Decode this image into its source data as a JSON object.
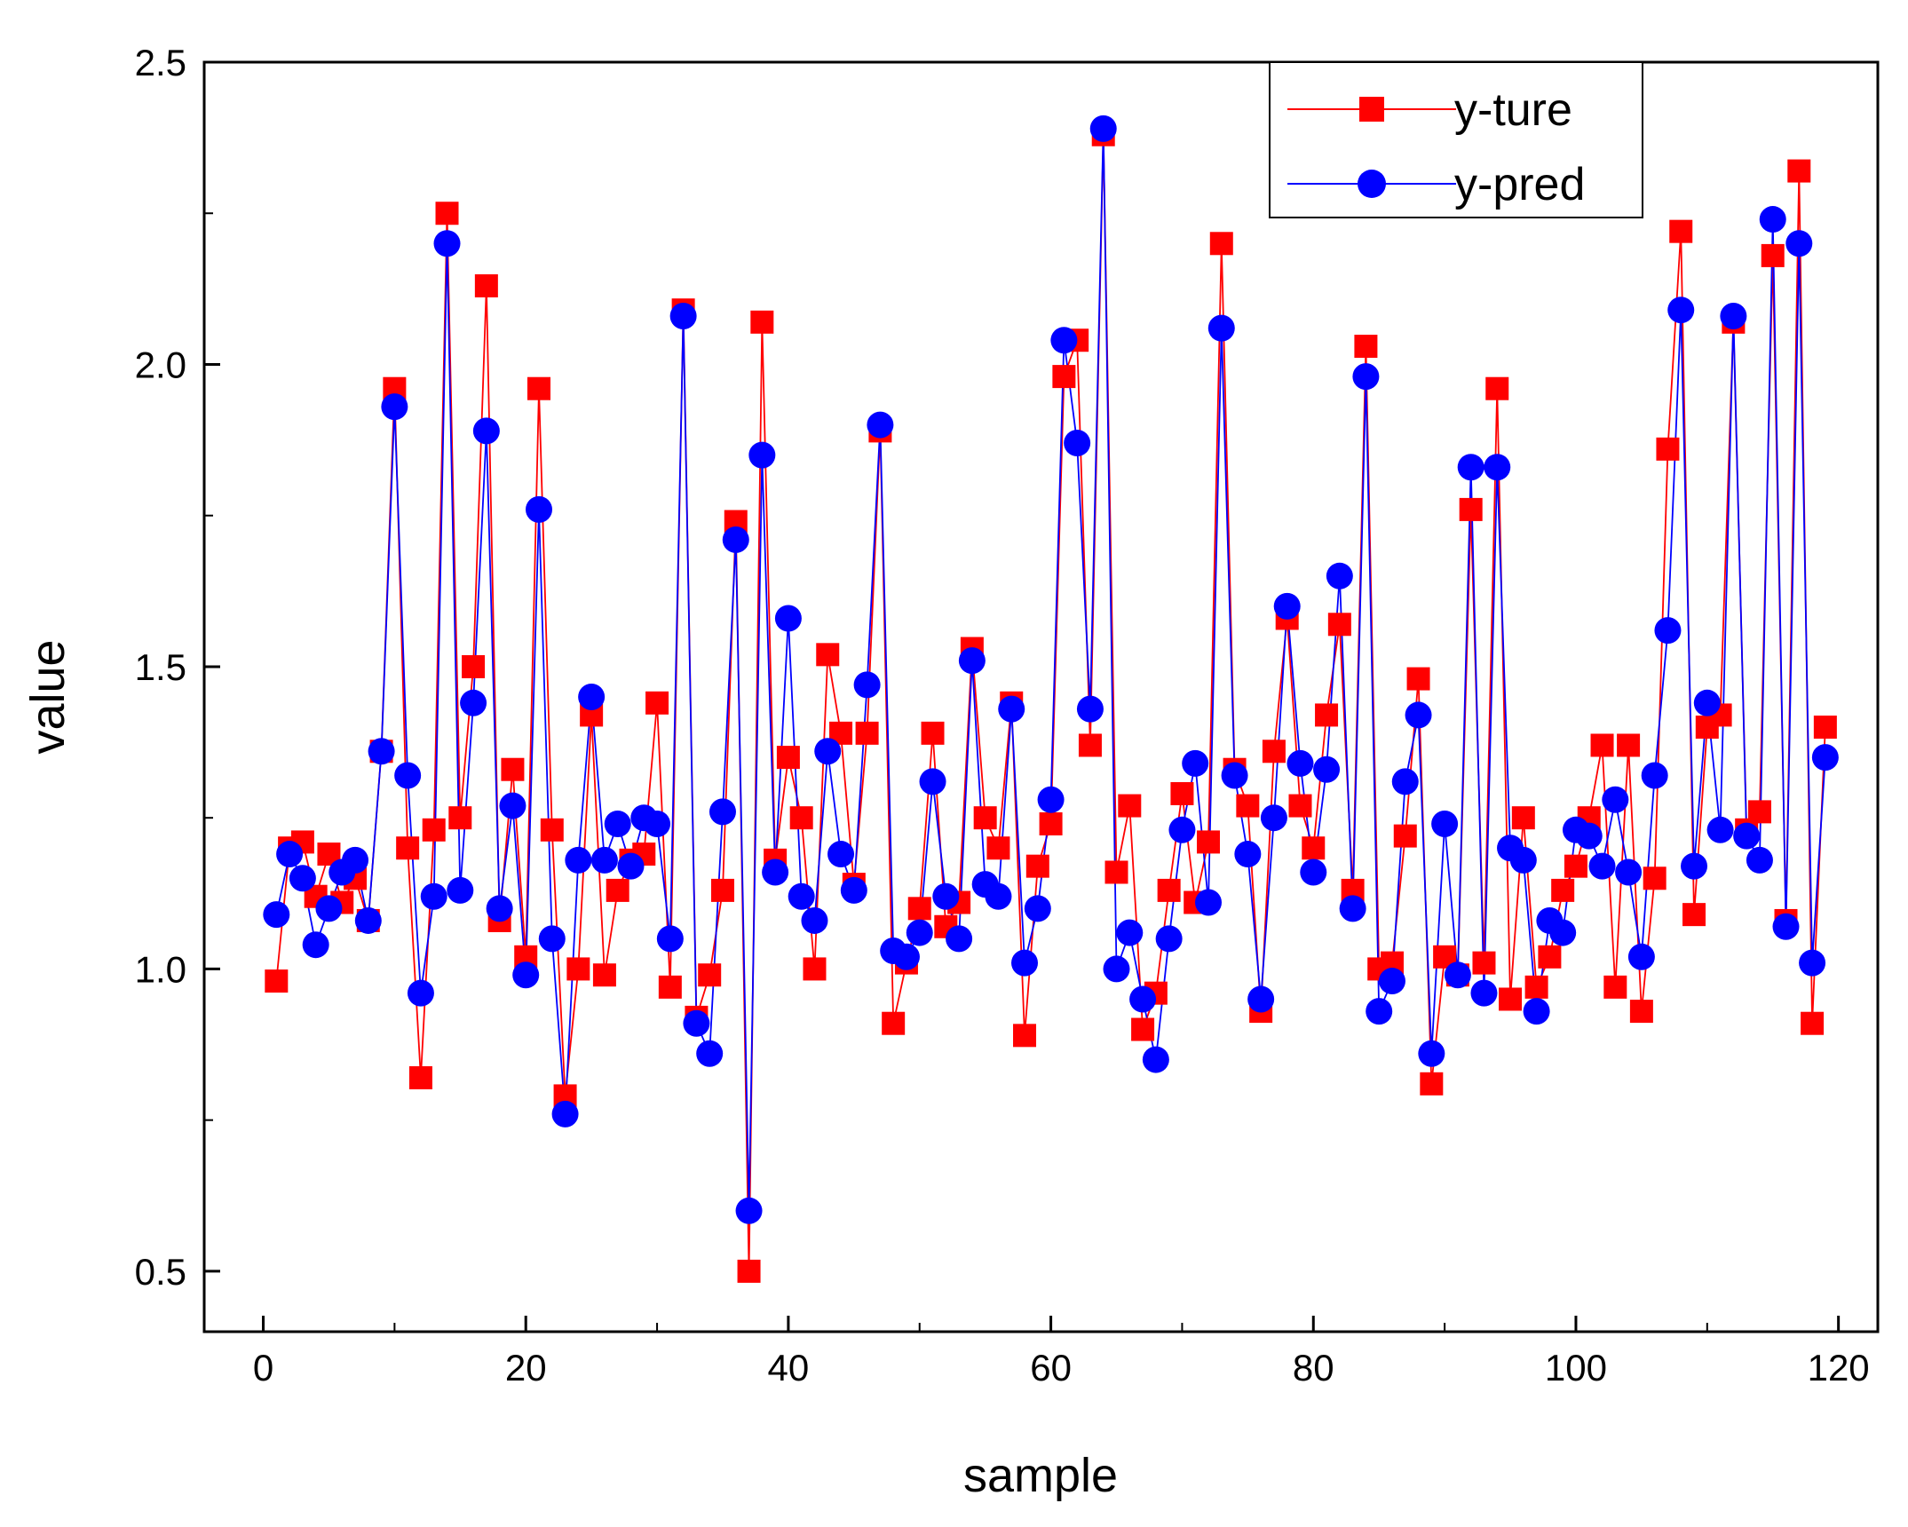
{
  "chart_data": {
    "type": "line",
    "title": "",
    "xlabel": "sample",
    "ylabel": "value",
    "xlim": [
      -4.5,
      123
    ],
    "ylim": [
      0.4,
      2.5
    ],
    "xticks": [
      0,
      20,
      40,
      60,
      80,
      100,
      120
    ],
    "yticks": [
      0.5,
      1.0,
      1.5,
      2.0,
      2.5
    ],
    "x_tick_labels": [
      "0",
      "20",
      "40",
      "60",
      "80",
      "100",
      "120"
    ],
    "y_tick_labels": [
      "0.5",
      "1.0",
      "1.5",
      "2.0",
      "2.5"
    ],
    "grid": false,
    "legend_position": "top-right",
    "series": [
      {
        "name": "y-ture",
        "color": "#ff0000",
        "marker": "square",
        "values": [
          0.98,
          1.2,
          1.21,
          1.12,
          1.19,
          1.11,
          1.15,
          1.08,
          1.36,
          1.96,
          1.2,
          0.82,
          1.23,
          2.25,
          1.25,
          1.5,
          2.13,
          1.08,
          1.33,
          1.02,
          1.96,
          1.23,
          0.79,
          1.0,
          1.42,
          0.99,
          1.13,
          1.18,
          1.19,
          1.44,
          0.97,
          2.09,
          0.92,
          0.99,
          1.13,
          1.74,
          0.5,
          2.07,
          1.18,
          1.35,
          1.25,
          1.0,
          1.52,
          1.39,
          1.14,
          1.39,
          1.89,
          0.91,
          1.01,
          1.1,
          1.39,
          1.07,
          1.11,
          1.53,
          1.25,
          1.2,
          1.44,
          0.89,
          1.17,
          1.24,
          1.98,
          2.04,
          1.37,
          2.38,
          1.16,
          1.27,
          0.9,
          0.96,
          1.13,
          1.29,
          1.11,
          1.21,
          2.2,
          1.33,
          1.27,
          0.93,
          1.36,
          1.58,
          1.27,
          1.2,
          1.42,
          1.57,
          1.13,
          2.03,
          1.0,
          1.01,
          1.22,
          1.48,
          0.81,
          1.02,
          0.99,
          1.76,
          1.01,
          1.96,
          0.95,
          1.25,
          0.97,
          1.02,
          1.13,
          1.17,
          1.25,
          1.37,
          0.97,
          1.37,
          0.93,
          1.15,
          1.86,
          2.22,
          1.09,
          1.4,
          1.42,
          2.07,
          1.23,
          1.26,
          2.18,
          1.08,
          2.32,
          0.91,
          1.4
        ]
      },
      {
        "name": "y-pred",
        "color": "#0000ff",
        "marker": "circle",
        "values": [
          1.09,
          1.19,
          1.15,
          1.04,
          1.1,
          1.16,
          1.18,
          1.08,
          1.36,
          1.93,
          1.32,
          0.96,
          1.12,
          2.2,
          1.13,
          1.44,
          1.89,
          1.1,
          1.27,
          0.99,
          1.76,
          1.05,
          0.76,
          1.18,
          1.45,
          1.18,
          1.24,
          1.17,
          1.25,
          1.24,
          1.05,
          2.08,
          0.91,
          0.86,
          1.26,
          1.71,
          0.6,
          1.85,
          1.16,
          1.58,
          1.12,
          1.08,
          1.36,
          1.19,
          1.13,
          1.47,
          1.9,
          1.03,
          1.02,
          1.06,
          1.31,
          1.12,
          1.05,
          1.51,
          1.14,
          1.12,
          1.43,
          1.01,
          1.1,
          1.28,
          2.04,
          1.87,
          1.43,
          2.39,
          1.0,
          1.06,
          0.95,
          0.85,
          1.05,
          1.23,
          1.34,
          1.11,
          2.06,
          1.32,
          1.19,
          0.95,
          1.25,
          1.6,
          1.34,
          1.16,
          1.33,
          1.65,
          1.1,
          1.98,
          0.93,
          0.98,
          1.31,
          1.42,
          0.86,
          1.24,
          0.99,
          1.83,
          0.96,
          1.83,
          1.2,
          1.18,
          0.93,
          1.08,
          1.06,
          1.23,
          1.22,
          1.17,
          1.28,
          1.16,
          1.02,
          1.32,
          1.56,
          2.09,
          1.17,
          1.44,
          1.23,
          2.08,
          1.22,
          1.18,
          2.24,
          1.07,
          2.2,
          1.01,
          1.35
        ]
      }
    ]
  }
}
